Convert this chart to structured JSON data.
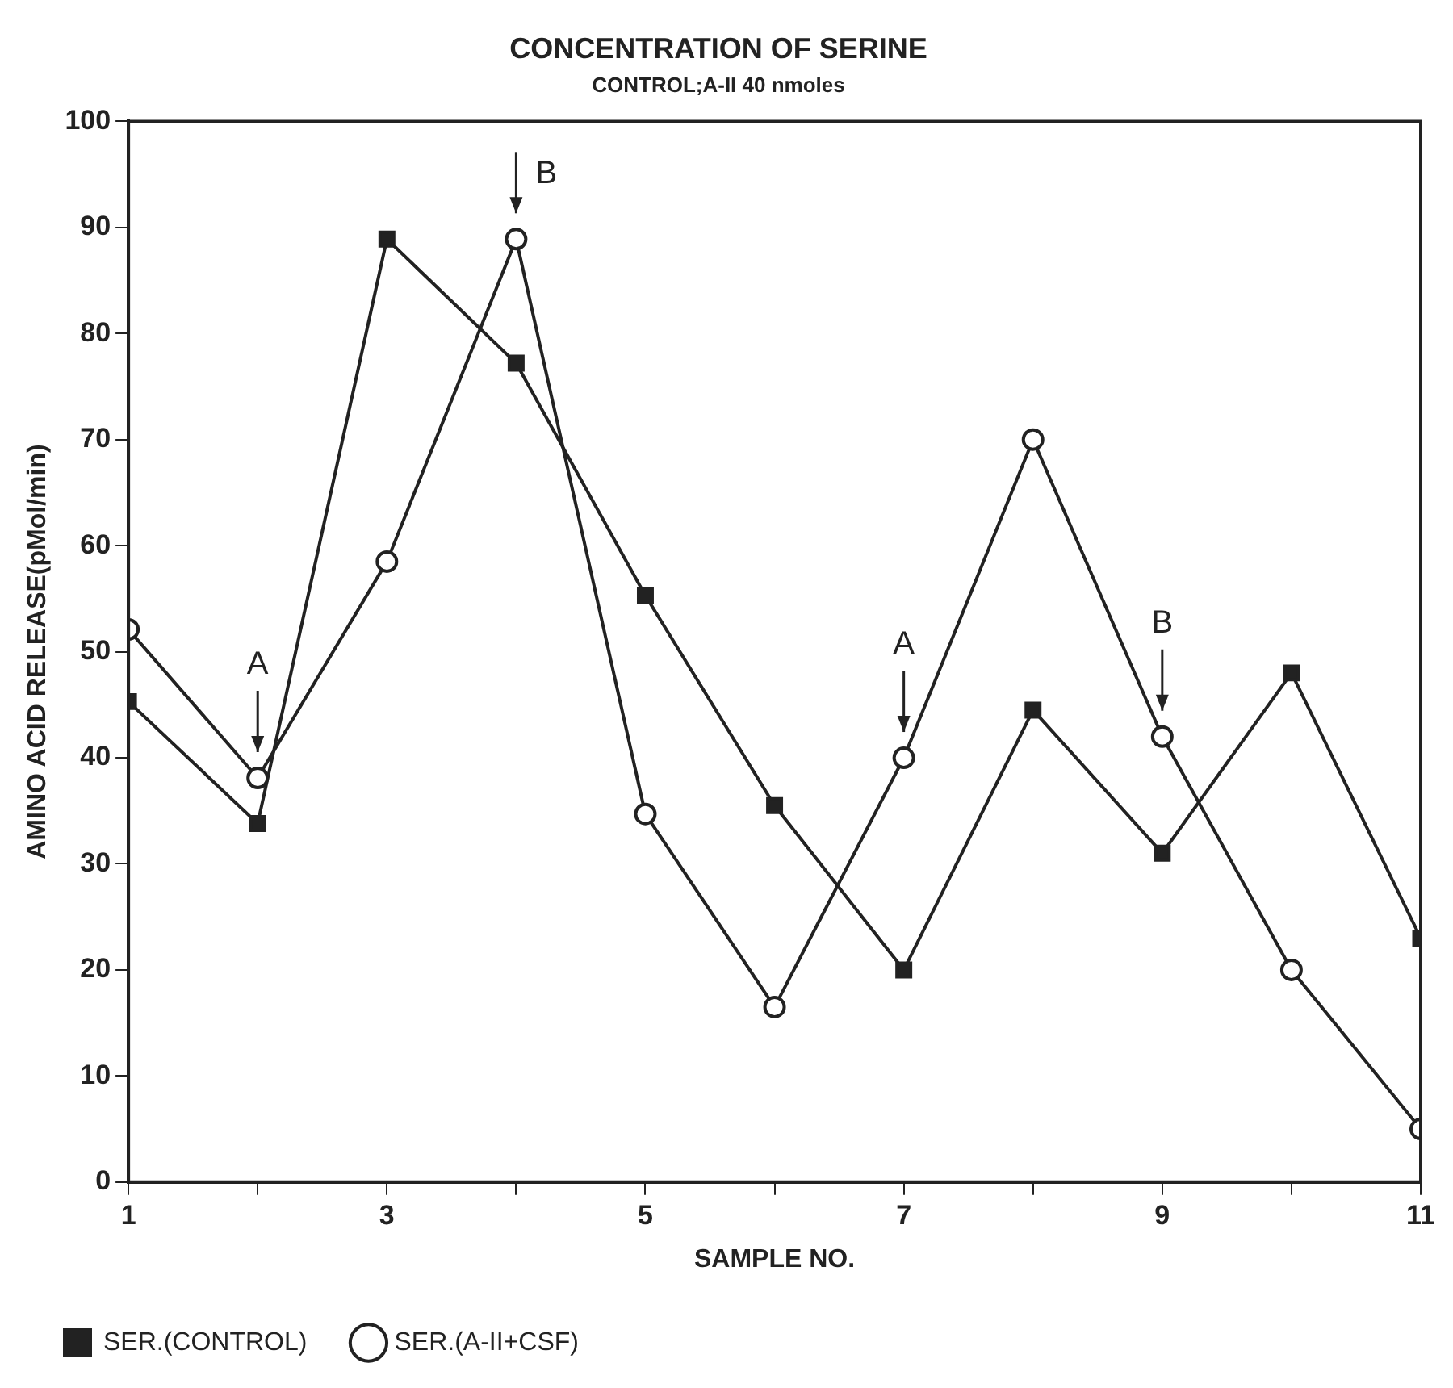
{
  "chart_data": {
    "type": "line",
    "title": "CONCENTRATION OF SERINE",
    "subtitle": "CONTROL;A-II 40 nmoles",
    "xlabel": "SAMPLE NO.",
    "ylabel": "AMINO ACID RELEASE(pMol/min)",
    "x": [
      1,
      2,
      3,
      4,
      5,
      6,
      7,
      8,
      9,
      10,
      11
    ],
    "series": [
      {
        "name": "SER.(CONTROL)",
        "color": "#222222",
        "marker": "square",
        "values": [
          45.3,
          33.8,
          88.9,
          77.2,
          55.3,
          35.5,
          20,
          44.5,
          31,
          48,
          23
        ]
      },
      {
        "name": "SER.(A-II+CSF)",
        "color": "#222222",
        "marker": "circle",
        "values": [
          52.1,
          38.1,
          58.5,
          88.9,
          34.7,
          16.5,
          40,
          70,
          42,
          20,
          5
        ]
      }
    ],
    "xlim": [
      1,
      11
    ],
    "xticks": [
      1,
      {
        "value": 2,
        "label": null
      },
      3,
      {
        "value": 4,
        "label": null
      },
      5,
      {
        "value": 6,
        "label": null
      },
      7,
      {
        "value": 8,
        "label": null
      },
      9,
      {
        "value": 10,
        "label": null
      },
      11
    ],
    "ylim": [
      0,
      100
    ],
    "yticks": [
      0,
      10,
      20,
      30,
      40,
      50,
      60,
      70,
      80,
      90,
      100
    ],
    "annotations": [
      {
        "text": "A",
        "x": 2,
        "y": 38.1
      },
      {
        "text": "B",
        "x": 4,
        "y": 88.9
      },
      {
        "text": "A",
        "x": 7,
        "y": 40
      },
      {
        "text": "B",
        "x": 9,
        "y": 42
      }
    ],
    "grid": false,
    "legend": "bottom",
    "line_style": "solid"
  }
}
